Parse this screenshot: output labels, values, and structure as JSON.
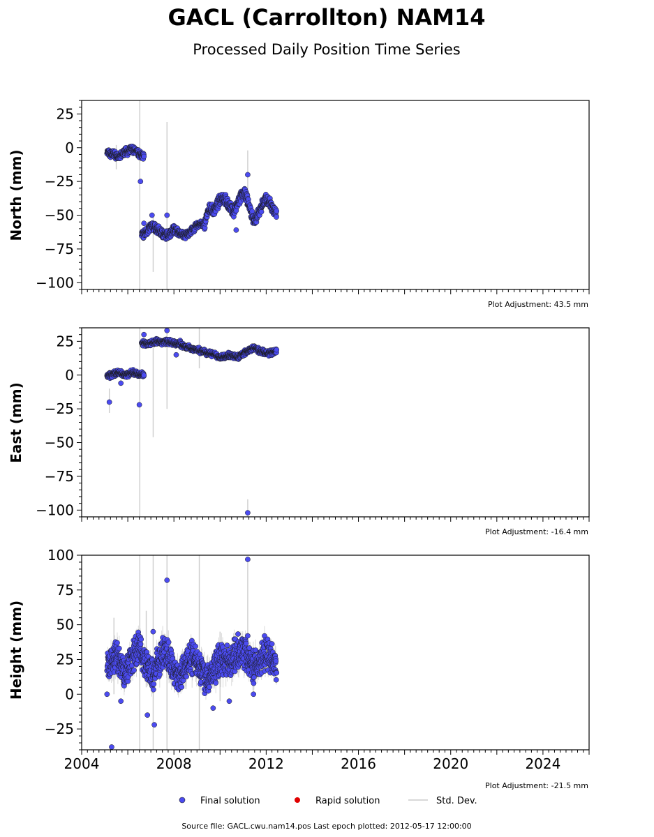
{
  "title": "GACL (Carrollton) NAM14",
  "subtitle": "Processed Daily Position Time Series",
  "legend": {
    "final_label": "Final solution",
    "rapid_label": "Rapid solution",
    "stddev_label": "Std. Dev."
  },
  "footer": "Source file: GACL.cwu.nam14.pos  Last epoch plotted: 2012-05-17 12:00:00",
  "colors": {
    "final": "#4b4bf0",
    "rapid": "#e00000",
    "stddev": "#cccccc"
  },
  "chart_data": [
    {
      "type": "scatter",
      "ylabel": "North (mm)",
      "adjustment": "Plot Adjustment: 43.5 mm",
      "xlim": [
        2004,
        2026
      ],
      "ylim": [
        -105,
        35
      ],
      "yticks": [
        25,
        0,
        -25,
        -50,
        -75,
        -100
      ],
      "segments": [
        {
          "x0": 2005.1,
          "x1": 2006.7,
          "y": [
            -3,
            -5,
            -4,
            -6,
            -7,
            -5,
            -2,
            -3,
            -1,
            -2,
            -4,
            -5,
            -6
          ],
          "amp": 2
        },
        {
          "x0": 2006.6,
          "x1": 2008.0,
          "y": [
            -65,
            -63,
            -60,
            -58,
            -60,
            -62,
            -64,
            -65,
            -63,
            -60
          ],
          "amp": 2.5
        },
        {
          "x0": 2008.0,
          "x1": 2009.3,
          "y": [
            -60,
            -62,
            -64,
            -65,
            -63,
            -61,
            -58,
            -56,
            -58
          ],
          "amp": 2
        },
        {
          "x0": 2009.3,
          "x1": 2010.6,
          "y": [
            -58,
            -50,
            -45,
            -47,
            -44,
            -40,
            -36,
            -38,
            -42,
            -45,
            -48
          ],
          "amp": 3
        },
        {
          "x0": 2010.6,
          "x1": 2012.45,
          "y": [
            -48,
            -42,
            -36,
            -34,
            -40,
            -50,
            -55,
            -48,
            -42,
            -38,
            -40,
            -45,
            -50
          ],
          "amp": 3
        }
      ],
      "outliers": [
        [
          2006.55,
          -25
        ],
        [
          2007.7,
          -50
        ],
        [
          2011.2,
          -20
        ],
        [
          2010.7,
          -61
        ],
        [
          2006.7,
          -56
        ],
        [
          2007.05,
          -50
        ]
      ],
      "errbars": [
        [
          2006.52,
          -108,
          35
        ],
        [
          2007.7,
          -105,
          19
        ],
        [
          2011.2,
          -42,
          -2
        ],
        [
          2007.1,
          -92,
          -50
        ],
        [
          2005.5,
          -16,
          2
        ]
      ]
    },
    {
      "type": "scatter",
      "ylabel": "East (mm)",
      "adjustment": "Plot Adjustment: -16.4 mm",
      "xlim": [
        2004,
        2026
      ],
      "ylim": [
        -105,
        35
      ],
      "yticks": [
        25,
        0,
        -25,
        -50,
        -75,
        -100
      ],
      "segments": [
        {
          "x0": 2005.1,
          "x1": 2006.7,
          "y": [
            -1,
            0,
            1,
            2,
            1,
            0,
            1,
            2,
            1,
            0,
            1
          ],
          "amp": 1.5
        },
        {
          "x0": 2006.6,
          "x1": 2008.3,
          "y": [
            24,
            23,
            24,
            25,
            24,
            25,
            24,
            23,
            24
          ],
          "amp": 1.5
        },
        {
          "x0": 2008.3,
          "x1": 2010.0,
          "y": [
            22,
            21,
            20,
            19,
            18,
            17,
            16,
            15,
            13
          ],
          "amp": 1.5
        },
        {
          "x0": 2010.0,
          "x1": 2012.45,
          "y": [
            13,
            14,
            15,
            14,
            13,
            15,
            17,
            19,
            20,
            18,
            17,
            16,
            17,
            18
          ],
          "amp": 1.5
        }
      ],
      "outliers": [
        [
          2005.2,
          -20
        ],
        [
          2006.5,
          -22
        ],
        [
          2007.7,
          33
        ],
        [
          2008.1,
          15
        ],
        [
          2011.2,
          -102
        ],
        [
          2006.7,
          30
        ],
        [
          2005.7,
          -6
        ]
      ],
      "errbars": [
        [
          2006.52,
          -108,
          35
        ],
        [
          2007.7,
          -25,
          35
        ],
        [
          2007.1,
          -46,
          20
        ],
        [
          2011.2,
          -108,
          -92
        ],
        [
          2009.1,
          5,
          35
        ],
        [
          2005.2,
          -28,
          -10
        ]
      ]
    },
    {
      "type": "scatter",
      "ylabel": "Height (mm)",
      "adjustment": "Plot Adjustment: -21.5 mm",
      "xlim": [
        2004,
        2026
      ],
      "ylim": [
        -40,
        100
      ],
      "yticks": [
        100,
        75,
        50,
        25,
        0,
        -25
      ],
      "xticks": [
        2004,
        2008,
        2012,
        2016,
        2020,
        2024
      ],
      "segments": [
        {
          "x0": 2005.1,
          "x1": 2012.45,
          "y": [
            18,
            22,
            28,
            20,
            15,
            24,
            30,
            35,
            25,
            18,
            14,
            22,
            28,
            30,
            22,
            15,
            12,
            20,
            26,
            28,
            22,
            15,
            10,
            15,
            22,
            26,
            25,
            24,
            28,
            32,
            30,
            25,
            20,
            22,
            28,
            30,
            24,
            20
          ],
          "amp": 9
        }
      ],
      "outliers": [
        [
          2005.3,
          -38
        ],
        [
          2005.1,
          0
        ],
        [
          2005.7,
          -5
        ],
        [
          2006.85,
          -15
        ],
        [
          2007.15,
          -22
        ],
        [
          2007.7,
          82
        ],
        [
          2009.7,
          -10
        ],
        [
          2010.4,
          -5
        ],
        [
          2011.2,
          97
        ],
        [
          2011.45,
          0
        ],
        [
          2007.1,
          45
        ],
        [
          2011.2,
          42
        ]
      ],
      "errbars": [
        [
          2006.52,
          -40,
          100
        ],
        [
          2007.1,
          -40,
          100
        ],
        [
          2007.7,
          -40,
          100
        ],
        [
          2009.1,
          -40,
          100
        ],
        [
          2011.2,
          20,
          97
        ],
        [
          2005.4,
          0,
          55
        ],
        [
          2010.0,
          -5,
          45
        ],
        [
          2006.8,
          5,
          60
        ]
      ]
    }
  ]
}
